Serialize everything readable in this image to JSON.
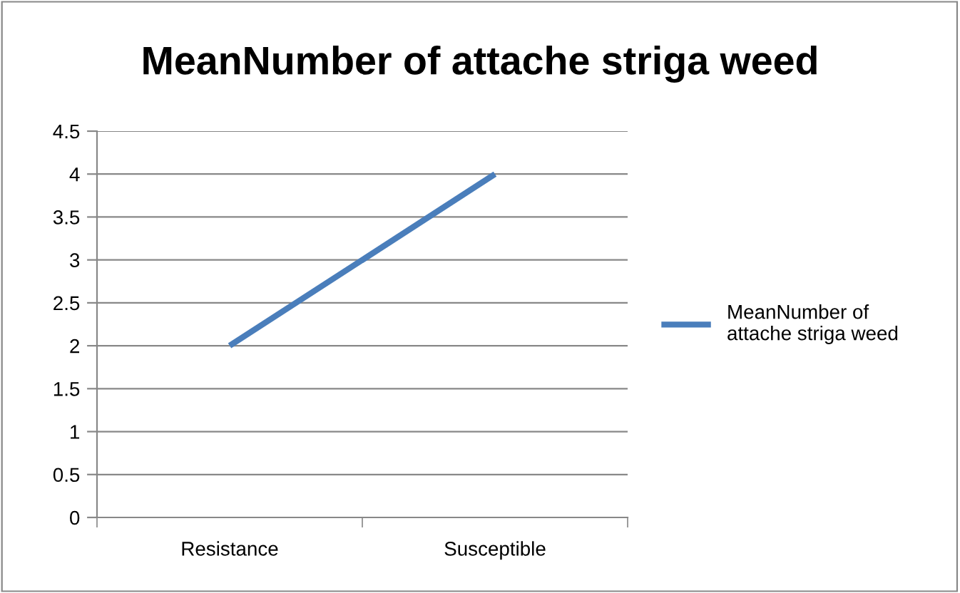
{
  "chart_data": {
    "type": "line",
    "title": "MeanNumber of attache striga weed",
    "categories": [
      "Resistance",
      "Susceptible"
    ],
    "series": [
      {
        "name": "MeanNumber of attache striga weed",
        "color": "#4a7ebb",
        "values": [
          2,
          4
        ]
      }
    ],
    "ylim": [
      0,
      4.5
    ],
    "yticks": [
      0,
      0.5,
      1,
      1.5,
      2,
      2.5,
      3,
      3.5,
      4,
      4.5
    ],
    "grid": "y",
    "legend": "right",
    "marker": "none",
    "line_style": "solid"
  }
}
